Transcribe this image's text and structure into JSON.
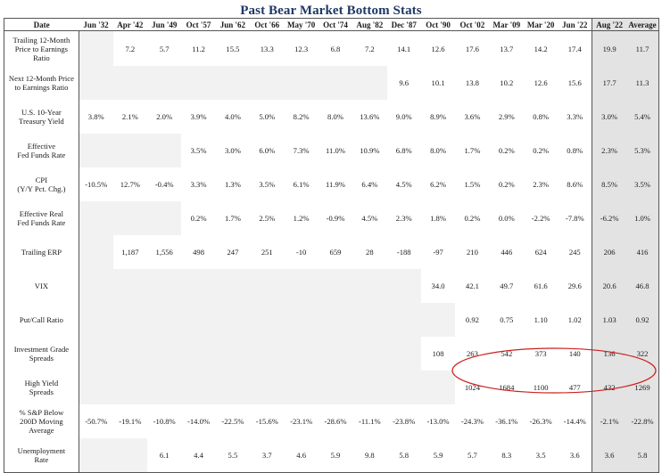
{
  "title": "Past Bear Market Bottom Stats",
  "header": {
    "date_label": "Date",
    "columns": [
      "Jun '32",
      "Apr '42",
      "Jun '49",
      "Oct '57",
      "Jun '62",
      "Oct '66",
      "May '70",
      "Oct '74",
      "Aug '82",
      "Dec '87",
      "Oct '90",
      "Oct '02",
      "Mar '09",
      "Mar '20",
      "Jun '22",
      "Aug '22",
      "Average"
    ]
  },
  "rows": [
    {
      "label": [
        "Trailing 12-Month",
        "Price to Earnings",
        "Ratio"
      ],
      "values": [
        "",
        "7.2",
        "5.7",
        "11.2",
        "15.5",
        "13.3",
        "12.3",
        "6.8",
        "7.2",
        "14.1",
        "12.6",
        "17.6",
        "13.7",
        "14.2",
        "17.4",
        "19.9",
        "11.7"
      ]
    },
    {
      "label": [
        "Next 12-Month Price",
        "to Earnings Ratio"
      ],
      "values": [
        "",
        "",
        "",
        "",
        "",
        "",
        "",
        "",
        "",
        "9.6",
        "10.1",
        "13.8",
        "10.2",
        "12.6",
        "15.6",
        "17.7",
        "11.3"
      ]
    },
    {
      "label": [
        "U.S. 10-Year",
        "Treasury Yield"
      ],
      "values": [
        "3.8%",
        "2.1%",
        "2.0%",
        "3.9%",
        "4.0%",
        "5.0%",
        "8.2%",
        "8.0%",
        "13.6%",
        "9.0%",
        "8.9%",
        "3.6%",
        "2.9%",
        "0.8%",
        "3.3%",
        "3.0%",
        "5.4%"
      ]
    },
    {
      "label": [
        "Effective",
        "Fed Funds Rate"
      ],
      "values": [
        "",
        "",
        "",
        "3.5%",
        "3.0%",
        "6.0%",
        "7.3%",
        "11.0%",
        "10.9%",
        "6.8%",
        "8.0%",
        "1.7%",
        "0.2%",
        "0.2%",
        "0.8%",
        "2.3%",
        "5.3%"
      ]
    },
    {
      "label": [
        "CPI",
        "(Y/Y Pct. Chg.)"
      ],
      "values": [
        "-10.5%",
        "12.7%",
        "-0.4%",
        "3.3%",
        "1.3%",
        "3.5%",
        "6.1%",
        "11.9%",
        "6.4%",
        "4.5%",
        "6.2%",
        "1.5%",
        "0.2%",
        "2.3%",
        "8.6%",
        "8.5%",
        "3.5%"
      ]
    },
    {
      "label": [
        "Effective Real",
        "Fed Funds Rate"
      ],
      "values": [
        "",
        "",
        "",
        "0.2%",
        "1.7%",
        "2.5%",
        "1.2%",
        "-0.9%",
        "4.5%",
        "2.3%",
        "1.8%",
        "0.2%",
        "0.0%",
        "-2.2%",
        "-7.8%",
        "-6.2%",
        "1.0%"
      ]
    },
    {
      "label": [
        "Trailing ERP"
      ],
      "values": [
        "",
        "1,187",
        "1,556",
        "498",
        "247",
        "251",
        "-10",
        "659",
        "28",
        "-188",
        "-97",
        "210",
        "446",
        "624",
        "245",
        "206",
        "416"
      ]
    },
    {
      "label": [
        "VIX"
      ],
      "values": [
        "",
        "",
        "",
        "",
        "",
        "",
        "",
        "",
        "",
        "",
        "34.0",
        "42.1",
        "49.7",
        "61.6",
        "29.6",
        "20.6",
        "46.8"
      ]
    },
    {
      "label": [
        "Put/Call Ratio"
      ],
      "values": [
        "",
        "",
        "",
        "",
        "",
        "",
        "",
        "",
        "",
        "",
        "",
        "0.92",
        "0.75",
        "1.10",
        "1.02",
        "1.03",
        "0.92"
      ]
    },
    {
      "label": [
        "Investment Grade",
        "Spreads"
      ],
      "values": [
        "",
        "",
        "",
        "",
        "",
        "",
        "",
        "",
        "",
        "",
        "108",
        "263",
        "542",
        "373",
        "140",
        "136",
        "322"
      ]
    },
    {
      "label": [
        "High Yield",
        "Spreads"
      ],
      "values": [
        "",
        "",
        "",
        "",
        "",
        "",
        "",
        "",
        "",
        "",
        "",
        "1024",
        "1684",
        "1100",
        "477",
        "432",
        "1269"
      ]
    },
    {
      "label": [
        "% S&P Below",
        "200D Moving",
        "Average"
      ],
      "values": [
        "-50.7%",
        "-19.1%",
        "-10.8%",
        "-14.0%",
        "-22.5%",
        "-15.6%",
        "-23.1%",
        "-28.6%",
        "-11.1%",
        "-23.8%",
        "-13.0%",
        "-24.3%",
        "-36.1%",
        "-26.3%",
        "-14.4%",
        "-2.1%",
        "-22.8%"
      ]
    },
    {
      "label": [
        "Unemployment",
        "Rate"
      ],
      "values": [
        "",
        "",
        "6.1",
        "4.4",
        "5.5",
        "3.7",
        "4.6",
        "5.9",
        "9.8",
        "5.8",
        "5.9",
        "5.7",
        "8.3",
        "3.5",
        "3.6",
        "3.6",
        "5.8"
      ]
    }
  ],
  "colors": {
    "title": "#1f3864",
    "highlight_columns": "#e3e3e3",
    "missing_cells": "#f2f2f2",
    "annotation_ellipse": "#cc1f1f"
  }
}
